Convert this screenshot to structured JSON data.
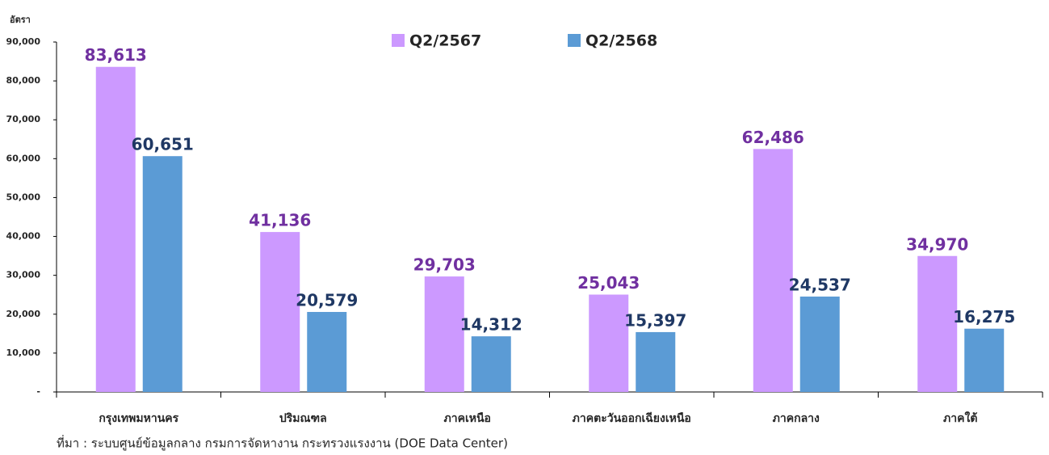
{
  "chart_data": {
    "type": "bar",
    "y_label": "อัตรา",
    "source": "ที่มา : ระบบศูนย์ข้อมูลกลาง กรมการจัดหางาน กระทรวงแรงงาน (DOE Data Center)",
    "categories": [
      "กรุงเทพมหานคร",
      "ปริมณฑล",
      "ภาคเหนือ",
      "ภาคตะวันออกเฉียงเหนือ",
      "ภาคกลาง",
      "ภาคใต้"
    ],
    "series": [
      {
        "name": "Q2/2567",
        "color": "#cc99ff",
        "label_color": "#7030a0",
        "values": [
          83613,
          41136,
          29703,
          25043,
          62486,
          34970
        ],
        "value_labels": [
          "83,613",
          "41,136",
          "29,703",
          "25,043",
          "62,486",
          "34,970"
        ]
      },
      {
        "name": "Q2/2568",
        "color": "#5b9bd5",
        "label_color": "#1f3864",
        "values": [
          60651,
          20579,
          14312,
          15397,
          24537,
          16275
        ],
        "value_labels": [
          "60,651",
          "20,579",
          "14,312",
          "15,397",
          "24,537",
          "16,275"
        ]
      }
    ],
    "ylim": [
      0,
      90000
    ],
    "yticks": [
      {
        "value": 0,
        "label": "-"
      },
      {
        "value": 10000,
        "label": "10,000"
      },
      {
        "value": 20000,
        "label": "20,000"
      },
      {
        "value": 30000,
        "label": "30,000"
      },
      {
        "value": 40000,
        "label": "40,000"
      },
      {
        "value": 50000,
        "label": "50,000"
      },
      {
        "value": 60000,
        "label": "60,000"
      },
      {
        "value": 70000,
        "label": "70,000"
      },
      {
        "value": 80000,
        "label": "80,000"
      },
      {
        "value": 90000,
        "label": "90,000"
      }
    ],
    "legend": "top"
  }
}
